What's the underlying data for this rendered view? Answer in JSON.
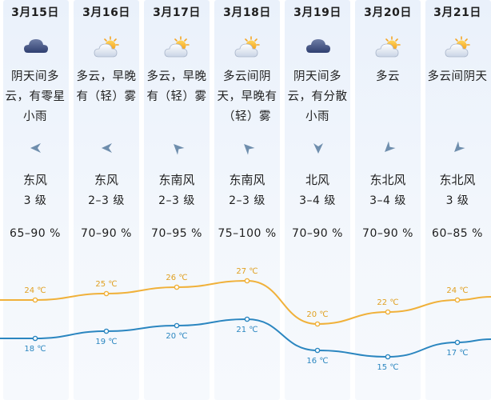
{
  "days": [
    {
      "date": "3月15日",
      "icon": "overcast-rain-icon",
      "desc": "阴天间多\n云，有零星\n小雨",
      "arrow_deg": 180,
      "wind_dir": "东风",
      "wind_level": "3 级",
      "humidity": "65–90 %",
      "high": "24 ℃",
      "low": "18 ℃",
      "high_val": 24,
      "low_val": 18
    },
    {
      "date": "3月16日",
      "icon": "partly-cloudy-icon",
      "desc": "多云，早晚\n有（轻）雾",
      "arrow_deg": 180,
      "wind_dir": "东风",
      "wind_level": "2–3 级",
      "humidity": "70–90 %",
      "high": "25 ℃",
      "low": "19 ℃",
      "high_val": 25,
      "low_val": 19
    },
    {
      "date": "3月17日",
      "icon": "partly-cloudy-icon",
      "desc": "多云，早晚\n有（轻）雾",
      "arrow_deg": 225,
      "wind_dir": "东南风",
      "wind_level": "2–3 级",
      "humidity": "70–95 %",
      "high": "26 ℃",
      "low": "20 ℃",
      "high_val": 26,
      "low_val": 20
    },
    {
      "date": "3月18日",
      "icon": "partly-cloudy-icon",
      "desc": "多云间阴\n天，早晚有\n（轻）雾",
      "arrow_deg": 225,
      "wind_dir": "东南风",
      "wind_level": "2–3 级",
      "humidity": "75–100 %",
      "high": "27 ℃",
      "low": "21 ℃",
      "high_val": 27,
      "low_val": 21
    },
    {
      "date": "3月19日",
      "icon": "overcast-rain-icon",
      "desc": "阴天间多\n云，有分散\n小雨",
      "arrow_deg": 90,
      "wind_dir": "北风",
      "wind_level": "3–4 级",
      "humidity": "70–90 %",
      "high": "20 ℃",
      "low": "16 ℃",
      "high_val": 20,
      "low_val": 16
    },
    {
      "date": "3月20日",
      "icon": "partly-cloudy-icon",
      "desc": "多云",
      "arrow_deg": 135,
      "wind_dir": "东北风",
      "wind_level": "3–4 级",
      "humidity": "70–90 %",
      "high": "22 ℃",
      "low": "15 ℃",
      "high_val": 22,
      "low_val": 15
    },
    {
      "date": "3月21日",
      "icon": "partly-cloudy-icon",
      "desc": "多云间阴天",
      "arrow_deg": 135,
      "wind_dir": "东北风",
      "wind_level": "3 级",
      "humidity": "60–85 %",
      "high": "24 ℃",
      "low": "17 ℃",
      "high_val": 24,
      "low_val": 17
    }
  ],
  "colors": {
    "high_line": "#f0b13a",
    "low_line": "#2b86c0",
    "high_text": "#e0a020",
    "low_text": "#2b86c0",
    "arrow": "#6f8ead"
  }
}
